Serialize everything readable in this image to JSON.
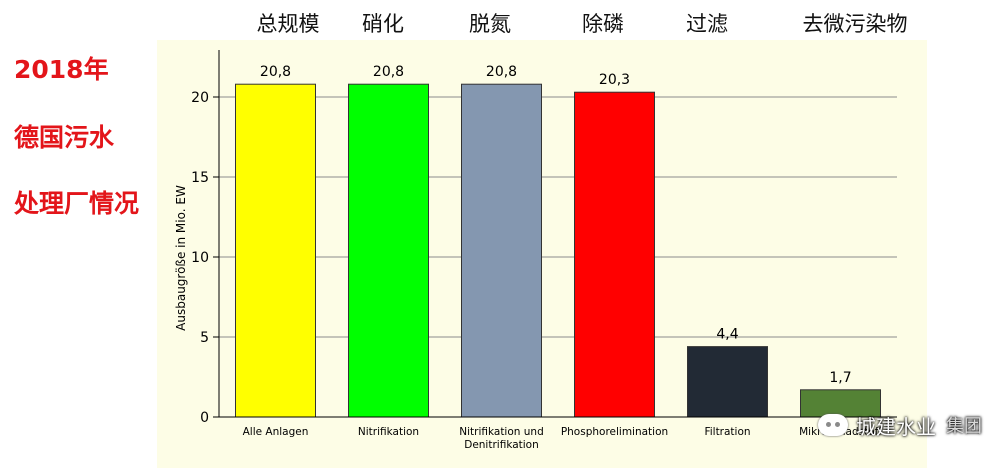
{
  "side_title": {
    "lines": [
      "2018年",
      "德国污水",
      "处理厂情况"
    ],
    "color": "#e3151a"
  },
  "top_labels": [
    "总规模",
    "硝化",
    "脱氮",
    "除磷",
    "过滤",
    "去微污染物"
  ],
  "watermark": {
    "icon": "wechat-icon",
    "text": "城建水业",
    "extra": "集团"
  },
  "chart_data": {
    "type": "bar",
    "categories": [
      [
        "Alle Anlagen"
      ],
      [
        "Nitrifikation"
      ],
      [
        "Nitrifikation und",
        "Denitrifikation"
      ],
      [
        "Phosphorelimination"
      ],
      [
        "Filtration"
      ],
      [
        "Mikroschadstoff"
      ]
    ],
    "values": [
      20.8,
      20.8,
      20.8,
      20.3,
      4.4,
      1.7
    ],
    "data_labels": [
      "20,8",
      "20,8",
      "20,8",
      "20,3",
      "4,4",
      "1,7"
    ],
    "colors": [
      "#ffff00",
      "#00ff00",
      "#8497b0",
      "#ff0000",
      "#222a35",
      "#548235"
    ],
    "ylabel": "Ausbaugröße in Mio. EW",
    "ylim": [
      0,
      22
    ],
    "yticks": [
      0,
      5,
      10,
      15,
      20
    ],
    "grid": true
  }
}
